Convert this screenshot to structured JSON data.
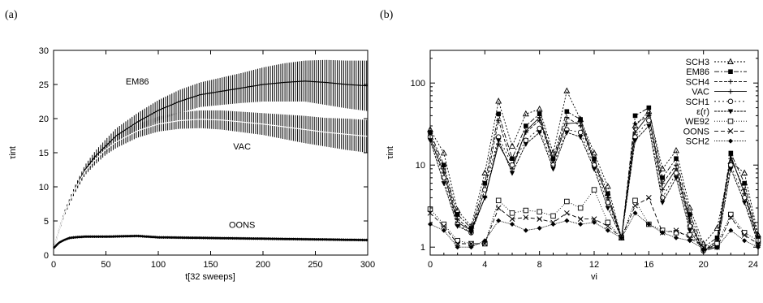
{
  "panels": {
    "left_label": "(a)",
    "right_label": "(b)"
  },
  "chart_data": [
    {
      "type": "line",
      "panel": "(a)",
      "title": "",
      "xlabel": "t[32 sweeps]",
      "ylabel": "τint",
      "xlim": [
        0,
        300
      ],
      "ylim": [
        0,
        30
      ],
      "xticks": [
        0,
        50,
        100,
        150,
        200,
        250,
        300
      ],
      "yticks": [
        0,
        5,
        10,
        15,
        20,
        25,
        30
      ],
      "grid": false,
      "series": [
        {
          "name": "EM86",
          "x": [
            0,
            10,
            20,
            30,
            40,
            50,
            60,
            80,
            100,
            120,
            140,
            160,
            180,
            200,
            220,
            240,
            260,
            280,
            300
          ],
          "y": [
            1.0,
            6.0,
            9.5,
            12.5,
            14.5,
            16.0,
            17.5,
            19.5,
            21.2,
            22.5,
            23.5,
            24.0,
            24.5,
            25.0,
            25.3,
            25.5,
            25.3,
            25.0,
            24.8
          ],
          "err": [
            0.1,
            0.3,
            0.5,
            0.7,
            0.8,
            1.0,
            1.1,
            1.3,
            1.5,
            1.7,
            1.8,
            2.0,
            2.2,
            2.5,
            2.8,
            3.0,
            3.3,
            3.5,
            3.7
          ]
        },
        {
          "name": "VAC",
          "x": [
            0,
            10,
            20,
            30,
            40,
            50,
            60,
            80,
            100,
            120,
            140,
            160,
            180,
            200,
            220,
            240,
            260,
            280,
            300
          ],
          "y": [
            1.0,
            6.0,
            9.5,
            12.3,
            14.0,
            15.5,
            16.6,
            18.2,
            19.2,
            19.7,
            19.9,
            19.8,
            19.5,
            19.2,
            18.8,
            18.4,
            18.0,
            17.7,
            17.4
          ],
          "err": [
            0.1,
            0.3,
            0.5,
            0.6,
            0.7,
            0.8,
            0.9,
            1.0,
            1.1,
            1.2,
            1.3,
            1.4,
            1.5,
            1.6,
            1.8,
            2.0,
            2.1,
            2.3,
            2.4
          ]
        },
        {
          "name": "OONS",
          "x": [
            0,
            5,
            10,
            15,
            20,
            30,
            50,
            80,
            100,
            150,
            200,
            250,
            300
          ],
          "y": [
            1.0,
            1.8,
            2.2,
            2.5,
            2.6,
            2.7,
            2.7,
            2.8,
            2.6,
            2.5,
            2.4,
            2.3,
            2.2
          ],
          "err": [
            0.05,
            0.1,
            0.15,
            0.2,
            0.2,
            0.2,
            0.2,
            0.2,
            0.2,
            0.2,
            0.2,
            0.2,
            0.2
          ]
        }
      ],
      "annotations": [
        {
          "text": "EM86",
          "x": 80,
          "y": 25
        },
        {
          "text": "VAC",
          "x": 180,
          "y": 15.5
        },
        {
          "text": "OONS",
          "x": 180,
          "y": 4
        }
      ]
    },
    {
      "type": "line",
      "panel": "(b)",
      "title": "",
      "xlabel": "vi",
      "ylabel": "τint",
      "xlim": [
        0,
        24
      ],
      "ylim": [
        0.8,
        250
      ],
      "yscale": "log",
      "xticks": [
        0,
        4,
        8,
        12,
        16,
        20,
        24
      ],
      "yticks": [
        1,
        10,
        100
      ],
      "grid": false,
      "legend_position": "top-right",
      "x": [
        0,
        1,
        2,
        3,
        4,
        5,
        6,
        7,
        8,
        9,
        10,
        11,
        12,
        13,
        14,
        15,
        16,
        17,
        18,
        19,
        20,
        21,
        22,
        23,
        24
      ],
      "series": [
        {
          "name": "SCH3",
          "marker": "triangle",
          "dash": "2,2",
          "values": [
            27,
            14,
            2.8,
            1.8,
            8,
            60,
            17,
            42,
            48,
            14,
            80,
            36,
            14,
            5.5,
            1.3,
            30,
            45,
            9,
            15,
            3,
            1.1,
            1.7,
            11,
            8,
            1.4
          ]
        },
        {
          "name": "EM86",
          "marker": "square-filled",
          "dash": "6,2,2,2",
          "values": [
            25,
            10,
            2.5,
            1.7,
            6,
            42,
            12,
            30,
            42,
            12,
            45,
            36,
            12,
            4.5,
            1.3,
            40,
            50,
            7,
            12,
            2.5,
            1.0,
            1.3,
            14,
            6,
            1.3
          ]
        },
        {
          "name": "SCH4",
          "marker": "plus",
          "dash": "4,2",
          "values": [
            23,
            9,
            2.2,
            1.6,
            5,
            35,
            10,
            25,
            35,
            11,
            38,
            30,
            11,
            4,
            1.3,
            32,
            40,
            6,
            10,
            2.2,
            0.9,
            1.2,
            12,
            5,
            1.2
          ]
        },
        {
          "name": "VAC",
          "marker": "plus",
          "dash": "",
          "values": [
            21,
            8,
            2.0,
            1.6,
            4,
            18,
            9,
            26,
            38,
            11,
            32,
            33,
            11,
            4,
            1.3,
            25,
            41,
            5,
            9,
            2.0,
            0.9,
            1.1,
            13,
            4.5,
            1.2
          ]
        },
        {
          "name": "SCH1",
          "marker": "circle-open",
          "dash": "2,3",
          "values": [
            22,
            7,
            1.9,
            1.5,
            5,
            22,
            10,
            20,
            28,
            10,
            27,
            25,
            10,
            3.5,
            1.3,
            22,
            35,
            4,
            8,
            1.8,
            0.9,
            1.0,
            10,
            4,
            1.1
          ]
        },
        {
          "name": "ε(r)",
          "marker": "triangle-down",
          "dash": "3,1",
          "values": [
            20,
            6,
            1.8,
            1.5,
            4,
            20,
            8,
            18,
            25,
            9,
            25,
            22,
            9,
            3,
            1.3,
            20,
            30,
            3.5,
            7,
            1.6,
            0.9,
            1.0,
            9,
            3.5,
            1.1
          ]
        },
        {
          "name": "WE92",
          "marker": "square-open",
          "dash": "1,2",
          "values": [
            2.9,
            1.9,
            1.2,
            1.1,
            1.1,
            3.7,
            2.6,
            2.8,
            2.7,
            2.4,
            3.6,
            3.0,
            5,
            2.0,
            1.3,
            3.7,
            1.9,
            1.6,
            1.5,
            1.4,
            1.0,
            1.1,
            2.5,
            1.5,
            1.2
          ]
        },
        {
          "name": "OONS",
          "marker": "cross",
          "dash": "5,3",
          "values": [
            2.6,
            1.8,
            1.1,
            1.1,
            1.1,
            3.0,
            2.2,
            2.3,
            2.2,
            2.0,
            2.6,
            2.2,
            2.2,
            1.8,
            1.3,
            3.2,
            4.0,
            1.5,
            1.6,
            1.3,
            1.0,
            1.0,
            2.3,
            1.4,
            1.1
          ]
        },
        {
          "name": "SCH2",
          "marker": "diamond",
          "dash": "1,1",
          "values": [
            1.9,
            1.6,
            1.0,
            1.0,
            1.2,
            2.1,
            1.9,
            1.6,
            1.7,
            1.9,
            2.1,
            1.9,
            2.0,
            1.6,
            1.3,
            2.6,
            1.9,
            1.5,
            1.3,
            1.2,
            0.95,
            1.0,
            1.6,
            1.2,
            1.0
          ]
        }
      ]
    }
  ]
}
